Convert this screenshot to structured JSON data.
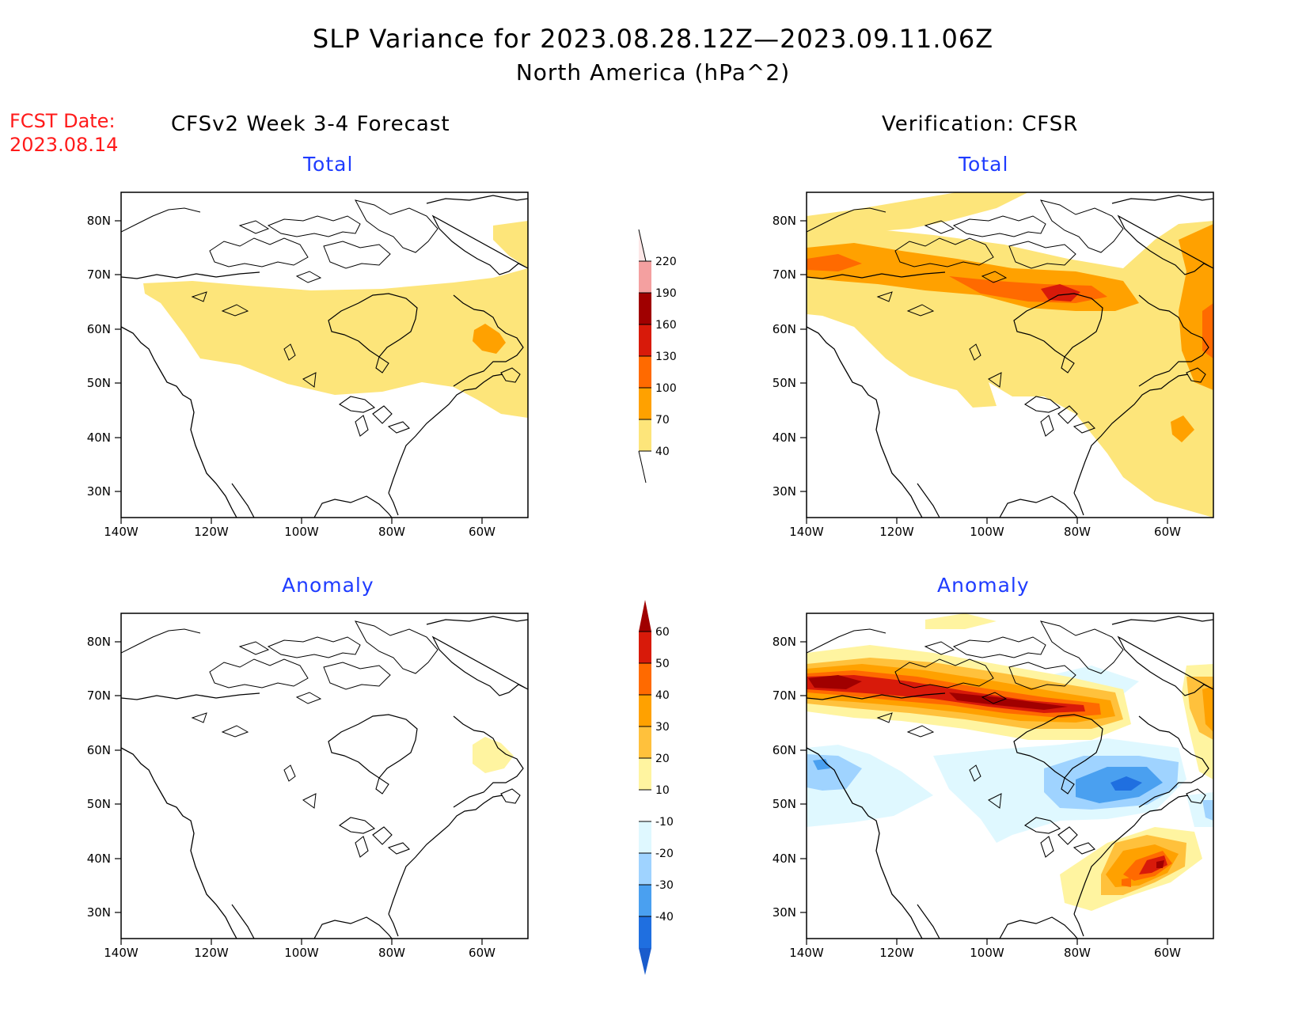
{
  "title": "SLP Variance for 2023.08.28.12Z—2023.09.11.06Z",
  "subtitle": "North America (hPa^2)",
  "fcst_date_label": "FCST Date:",
  "fcst_date": "2023.08.14",
  "left_column_title": "CFSv2 Week 3-4 Forecast",
  "right_column_title": "Verification: CFSR",
  "panels": [
    {
      "id": "fcst-total",
      "subtitle": "Total"
    },
    {
      "id": "verif-total",
      "subtitle": "Total"
    },
    {
      "id": "fcst-anomaly",
      "subtitle": "Anomaly"
    },
    {
      "id": "verif-anomaly",
      "subtitle": "Anomaly"
    }
  ],
  "axes": {
    "lon_ticks": [
      "140W",
      "120W",
      "100W",
      "80W",
      "60W"
    ],
    "lat_ticks": [
      "80N",
      "70N",
      "60N",
      "50N",
      "40N",
      "30N"
    ]
  },
  "colorbars": {
    "total": {
      "labels": [
        "220",
        "190",
        "160",
        "130",
        "100",
        "70",
        "40"
      ],
      "colors": [
        "#fde7e7",
        "#f4a0a0",
        "#a00000",
        "#d81a0a",
        "#ff6a00",
        "#ffa100",
        "#fde57a"
      ]
    },
    "anomaly": {
      "labels": [
        "60",
        "50",
        "40",
        "30",
        "20",
        "10",
        "-10",
        "-20",
        "-30",
        "-40"
      ],
      "colors": [
        "#a00000",
        "#d81a0a",
        "#ff6a00",
        "#ffa100",
        "#ffc13c",
        "#fff4a0",
        "#ffffff",
        "#dff8ff",
        "#9fd3ff",
        "#4aa0f0",
        "#1f6fe0",
        "#1a5ccc"
      ]
    }
  }
}
